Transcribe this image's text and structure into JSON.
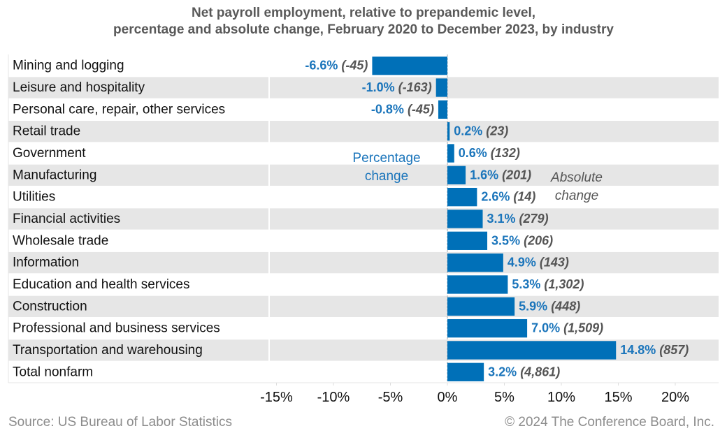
{
  "chart_data": {
    "type": "bar",
    "orientation": "horizontal",
    "title": [
      "Net payroll employment, relative to prepandemic level,",
      "percentage and absolute change, February 2020 to December 2023, by industry"
    ],
    "categories": [
      "Mining and logging",
      "Leisure and hospitality",
      "Personal care, repair, other services",
      "Retail trade",
      "Government",
      "Manufacturing",
      "Utilities",
      "Financial activities",
      "Wholesale trade",
      "Information",
      "Education and health services",
      "Construction",
      "Professional and business services",
      "Transportation and warehousing",
      "Total nonfarm"
    ],
    "values": [
      -6.6,
      -1.0,
      -0.8,
      0.2,
      0.6,
      1.6,
      2.6,
      3.1,
      3.5,
      4.9,
      5.3,
      5.9,
      7.0,
      14.8,
      3.2
    ],
    "pct_labels": [
      "-6.6%",
      "-1.0%",
      "-0.8%",
      "0.2%",
      "0.6%",
      "1.6%",
      "2.6%",
      "3.1%",
      "3.5%",
      "4.9%",
      "5.3%",
      "5.9%",
      "7.0%",
      "14.8%",
      "3.2%"
    ],
    "abs_labels": [
      "(-45)",
      "(-163)",
      "(-45)",
      "(23)",
      "(132)",
      "(201)",
      "(14)",
      "(279)",
      "(206)",
      "(143)",
      "(1,302)",
      "(448)",
      "(1,509)",
      "(857)",
      "(4,861)"
    ],
    "xlim": [
      -16,
      24
    ],
    "ticks": [
      -15,
      -10,
      -5,
      0,
      5,
      10,
      15,
      20
    ],
    "tick_labels": [
      "-15%",
      "-10%",
      "-5%",
      "0%",
      "5%",
      "10%",
      "15%",
      "20%"
    ],
    "annotations": {
      "percentage": [
        "Percentage",
        "change"
      ],
      "absolute": [
        "Absolute",
        "change"
      ]
    },
    "colors": {
      "bar": "#0070b8",
      "pct_label": "#1b75bb",
      "abs_label": "#555555",
      "band": "#e6e6e6"
    }
  },
  "footer": {
    "source": "Source: US Bureau of Labor Statistics",
    "copyright": "© 2024 The Conference Board, Inc."
  }
}
